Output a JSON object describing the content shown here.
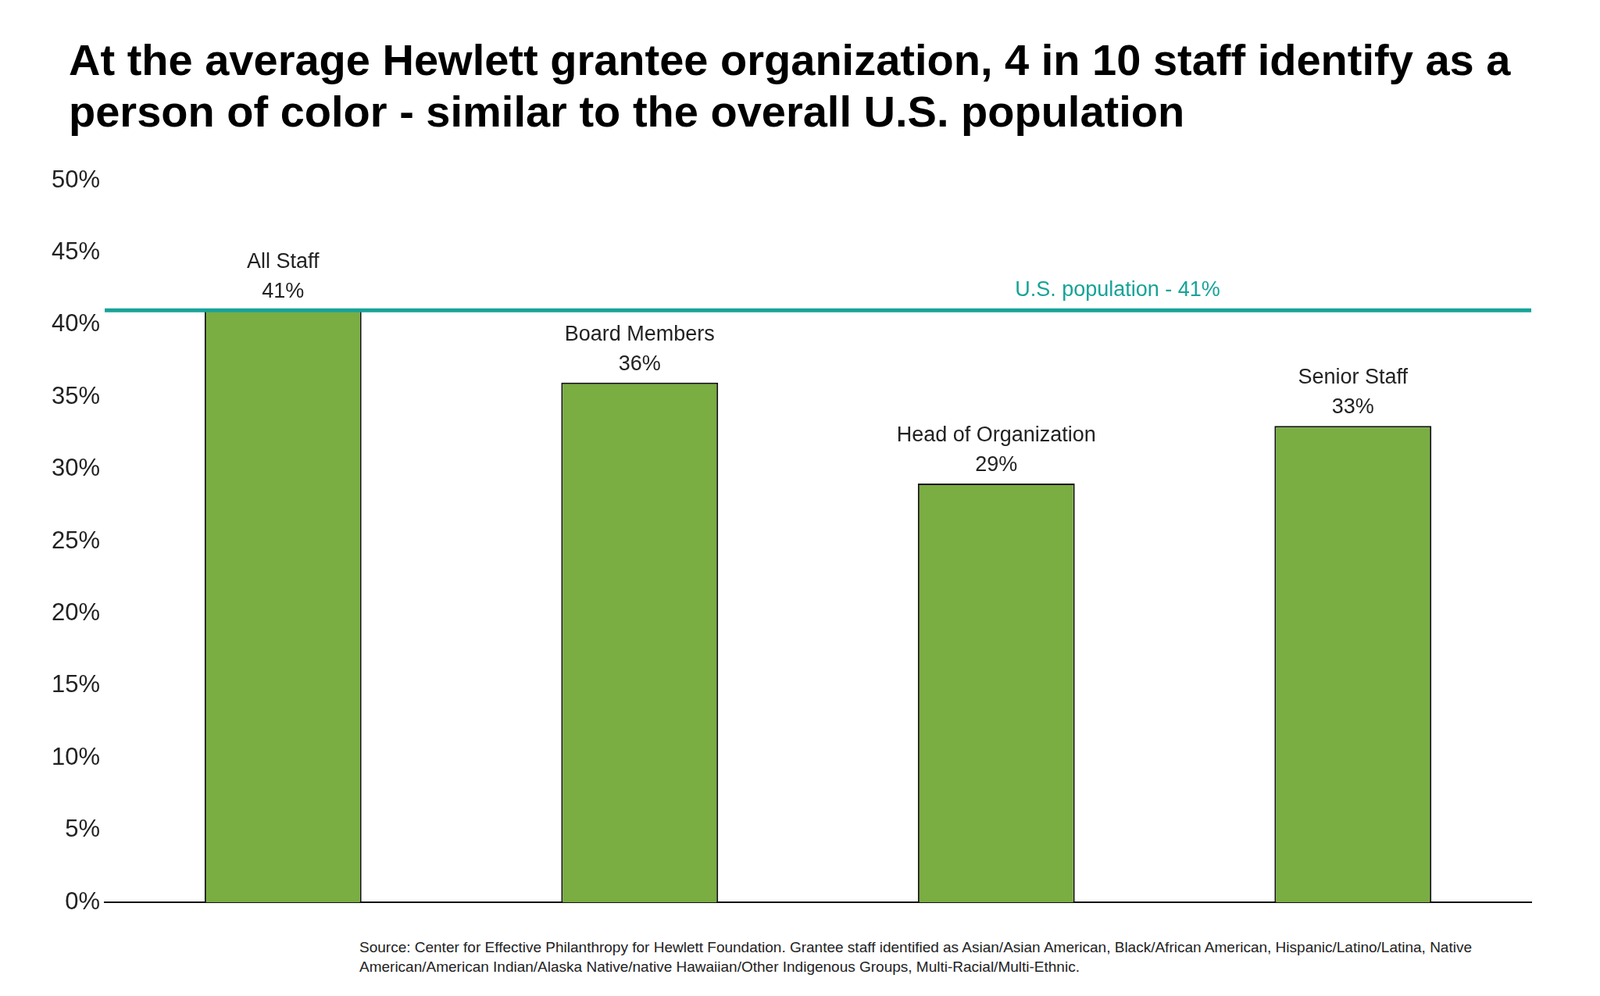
{
  "chart_data": {
    "type": "bar",
    "title": "At the average Hewlett grantee organization, 4 in 10 staff identify as a person of color - similar to the overall U.S. population",
    "categories": [
      "All Staff",
      "Board Members",
      "Head of Organization",
      "Senior Staff"
    ],
    "values": [
      41,
      36,
      29,
      33
    ],
    "value_labels": [
      "41%",
      "36%",
      "29%",
      "33%"
    ],
    "data_labels": true,
    "color": "#7aad42",
    "ylim": [
      0,
      50
    ],
    "yticks": [
      {
        "value": 0,
        "label": "0%"
      },
      {
        "value": 5,
        "label": "5%"
      },
      {
        "value": 10,
        "label": "10%"
      },
      {
        "value": 15,
        "label": "15%"
      },
      {
        "value": 20,
        "label": "20%"
      },
      {
        "value": 25,
        "label": "25%"
      },
      {
        "value": 30,
        "label": "30%"
      },
      {
        "value": 35,
        "label": "35%"
      },
      {
        "value": 40,
        "label": "40%"
      },
      {
        "value": 45,
        "label": "45%"
      },
      {
        "value": 50,
        "label": "50%"
      }
    ],
    "grid": false,
    "tick_labels": "y",
    "annotations": [
      {
        "type": "hline",
        "y": 41,
        "label": "U.S. population - 41%",
        "color": "#17a398"
      }
    ],
    "source": "Source: Center for Effective Philanthropy for Hewlett Foundation. Grantee staff identified as Asian/Asian American, Black/African American, Hispanic/Latino/Latina, Native American/American Indian/Alaska Native/native Hawaiian/Other Indigenous Groups, Multi-Racial/Multi-Ethnic."
  }
}
